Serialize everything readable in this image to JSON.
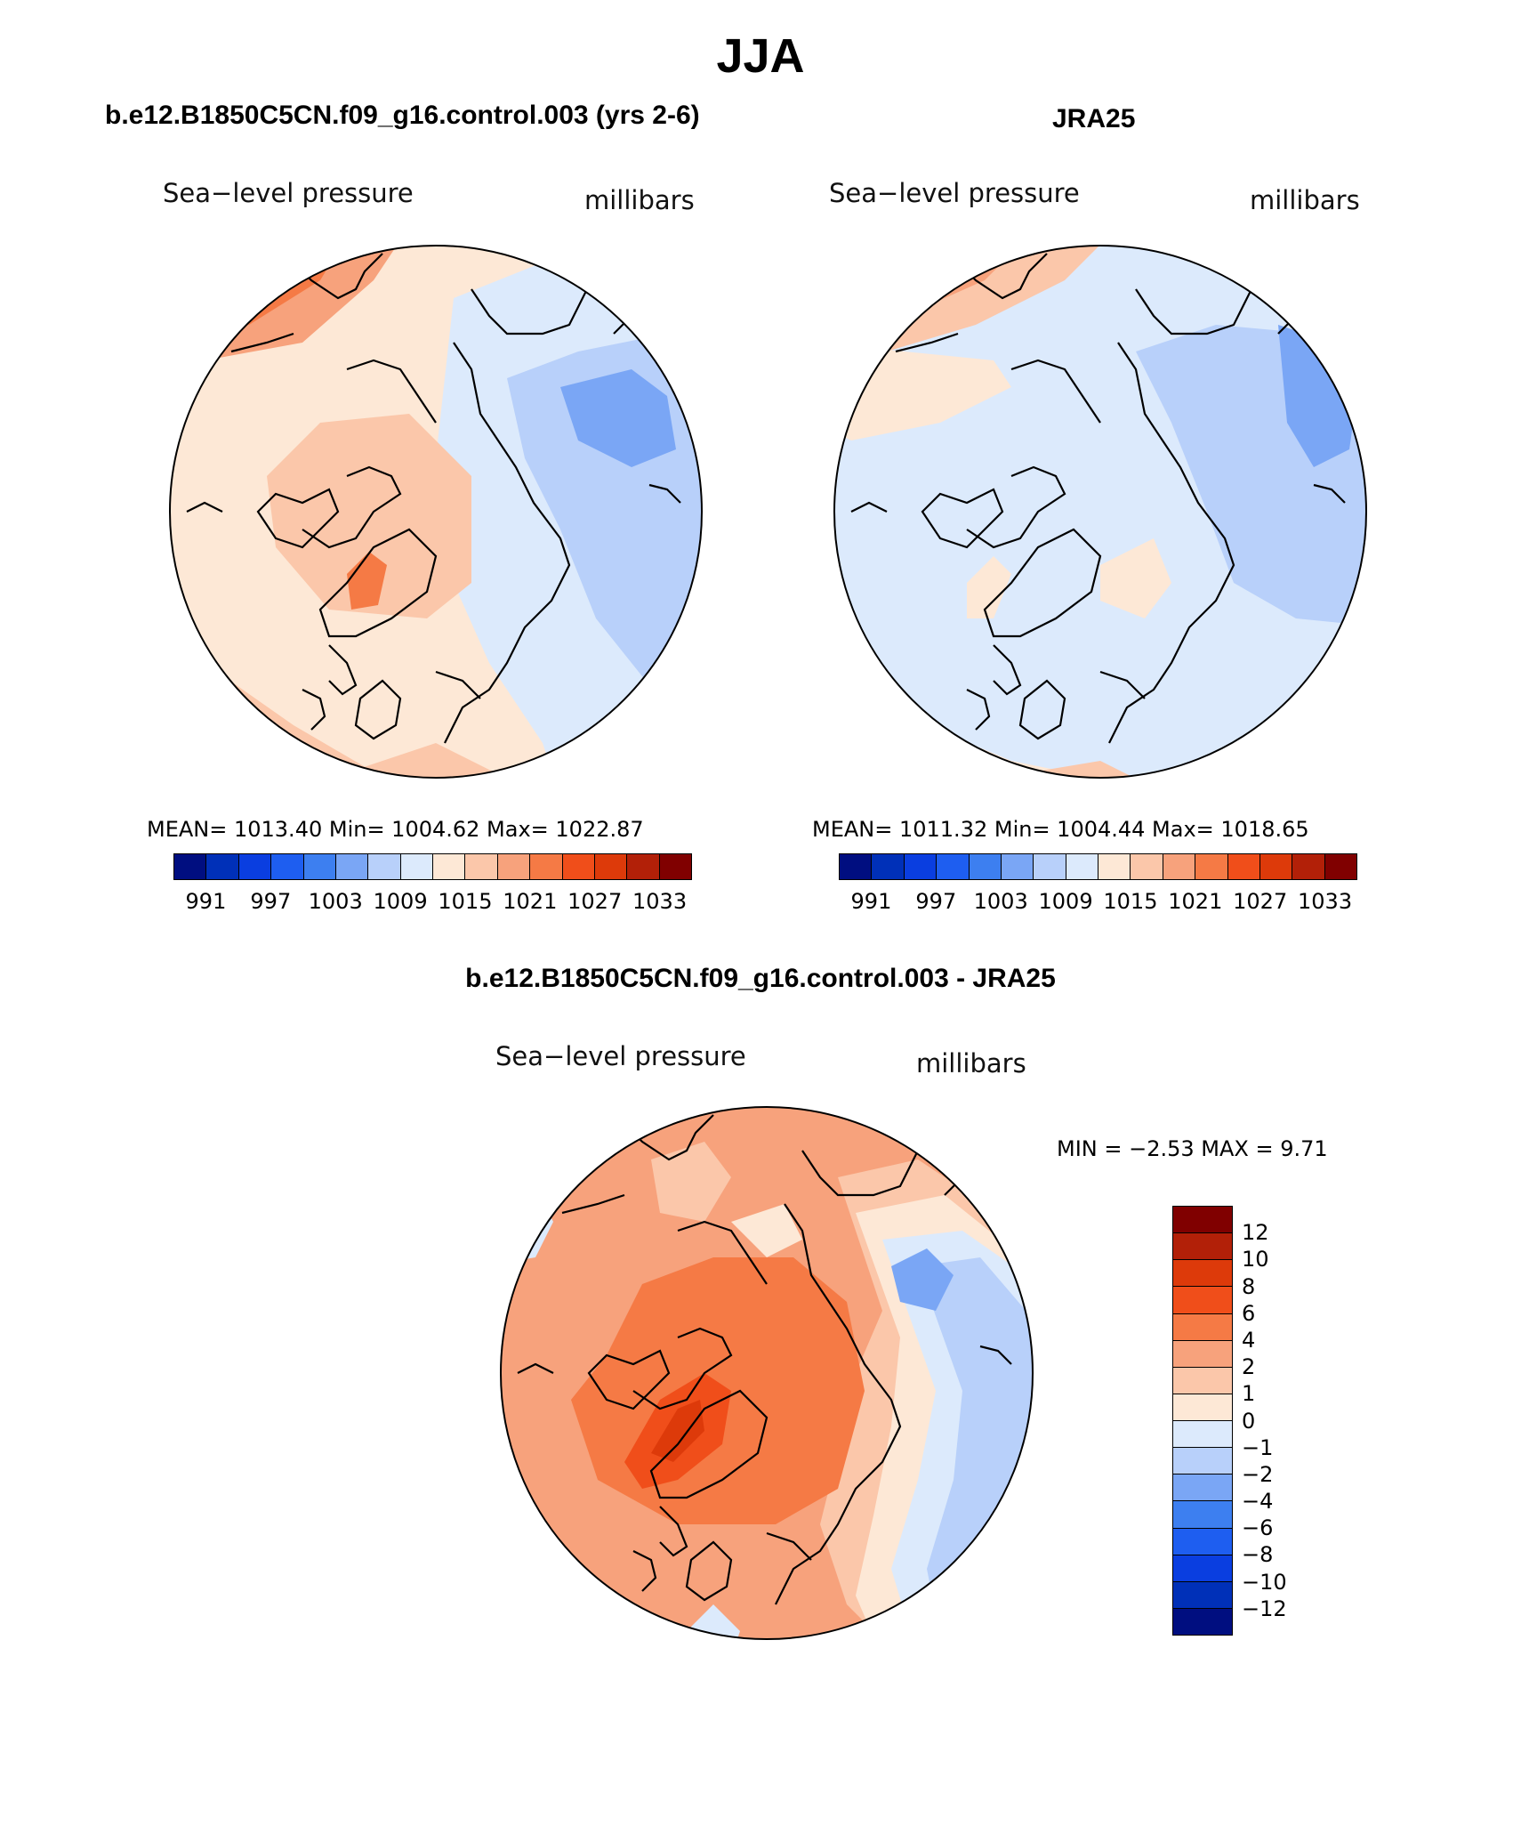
{
  "title": "JJA",
  "palette_abs": [
    "#000e80",
    "#0030b8",
    "#0a3ee0",
    "#1e5ef0",
    "#3d7ff0",
    "#7aa6f5",
    "#b8d0fa",
    "#dceafc",
    "#fde8d6",
    "#fbc7aa",
    "#f7a27c",
    "#f57a45",
    "#f04e1a",
    "#dd3a0a",
    "#b22008",
    "#800000"
  ],
  "palette_diff": [
    "#800000",
    "#b22008",
    "#dd3a0a",
    "#f04e1a",
    "#f57a45",
    "#f7a27c",
    "#fbc7aa",
    "#fde8d6",
    "#dceafc",
    "#b8d0fa",
    "#7aa6f5",
    "#3d7ff0",
    "#1e5ef0",
    "#0a3ee0",
    "#0030b8",
    "#000e80"
  ],
  "panels": [
    {
      "title": "b.e12.B1850C5CN.f09_g16.control.003 (yrs 2-6)",
      "label_left": "Sea−level pressure",
      "label_right": "millibars",
      "stats": "MEAN=  1013.40    Min=  1004.62    Max=  1022.87",
      "ticks": [
        "991",
        "997",
        "1003",
        "1009",
        "1015",
        "1021",
        "1027",
        "1033"
      ]
    },
    {
      "title": "JRA25",
      "label_left": "Sea−level pressure",
      "label_right": "millibars",
      "stats": "MEAN=  1011.32    Min=  1004.44    Max=  1018.65",
      "ticks": [
        "991",
        "997",
        "1003",
        "1009",
        "1015",
        "1021",
        "1027",
        "1033"
      ]
    },
    {
      "title": "b.e12.B1850C5CN.f09_g16.control.003 - JRA25",
      "label_left": "Sea−level pressure",
      "label_right": "millibars",
      "stats": "MIN =    −2.53  MAX =     9.71",
      "ticks": [
        "12",
        "10",
        "8",
        "6",
        "4",
        "2",
        "1",
        "0",
        "−1",
        "−2",
        "−4",
        "−6",
        "−8",
        "−10",
        "−12"
      ]
    }
  ]
}
